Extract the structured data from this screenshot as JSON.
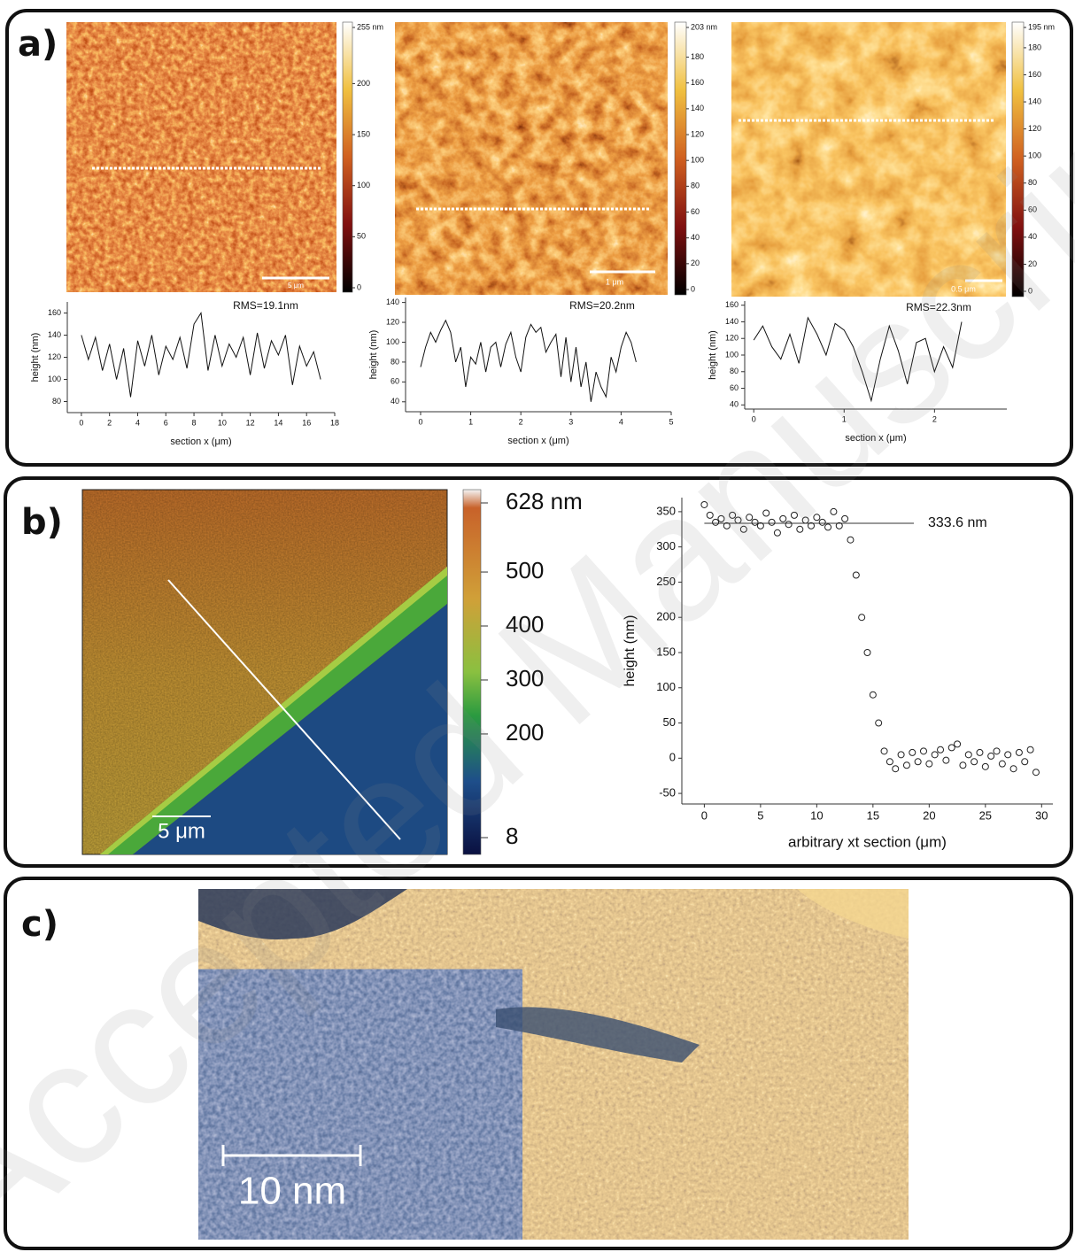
{
  "figure": {
    "watermark": "Accepted Manuscript",
    "panels": [
      {
        "label": "a)"
      },
      {
        "label": "b)"
      },
      {
        "label": "c)"
      }
    ],
    "images": [
      {
        "scale_bar": "5 μm",
        "colorbar": {
          "lim": [
            0,
            255
          ],
          "ticks": [
            {
              "value": 255,
              "label": "255 nm"
            },
            200,
            150,
            100,
            50,
            0
          ]
        }
      },
      {
        "scale_bar": "1 μm",
        "colorbar": {
          "lim": [
            0,
            203
          ],
          "ticks": [
            {
              "value": 203,
              "label": "203 nm"
            },
            180,
            160,
            140,
            120,
            100,
            80,
            60,
            40,
            20,
            0
          ]
        }
      },
      {
        "scale_bar": "0.5 μm",
        "colorbar": {
          "lim": [
            0,
            195
          ],
          "ticks": [
            {
              "value": 195,
              "label": "195 nm"
            },
            180,
            160,
            140,
            120,
            100,
            80,
            60,
            40,
            20,
            0
          ]
        }
      },
      {
        "scale_bar": "5 μm",
        "colorbar": {
          "lim": [
            8,
            628
          ],
          "ticks": [
            {
              "value": 628,
              "label": "628 nm"
            },
            500,
            400,
            300,
            200,
            8
          ]
        }
      },
      {
        "scale_bar": "10 nm"
      }
    ]
  },
  "chart_data": [
    {
      "type": "line",
      "annotation": "RMS=19.1nm",
      "xlabel": "section x (μm)",
      "ylabel": "height (nm)",
      "color": "#111111",
      "x": [
        0,
        0.5,
        1,
        1.5,
        2,
        2.5,
        3,
        3.5,
        4,
        4.5,
        5,
        5.5,
        6,
        6.5,
        7,
        7.5,
        8,
        8.5,
        9,
        9.5,
        10,
        10.5,
        11,
        11.5,
        12,
        12.5,
        13,
        13.5,
        14,
        14.5,
        15,
        15.5,
        16,
        16.5,
        17
      ],
      "values": [
        140,
        118,
        138,
        108,
        132,
        100,
        128,
        84,
        135,
        112,
        140,
        104,
        130,
        118,
        138,
        110,
        150,
        160,
        108,
        140,
        112,
        132,
        120,
        138,
        104,
        142,
        110,
        135,
        122,
        140,
        95,
        130,
        112,
        125,
        100
      ],
      "xlim": [
        -1,
        18
      ],
      "ylim": [
        70,
        170
      ],
      "xticks": [
        0,
        2,
        4,
        6,
        8,
        10,
        12,
        14,
        16,
        18
      ],
      "yticks": [
        80,
        100,
        120,
        140,
        160
      ]
    },
    {
      "type": "line",
      "annotation": "RMS=20.2nm",
      "xlabel": "section x (μm)",
      "ylabel": "height (nm)",
      "color": "#111111",
      "x": [
        0,
        0.1,
        0.2,
        0.3,
        0.4,
        0.5,
        0.6,
        0.7,
        0.8,
        0.9,
        1,
        1.1,
        1.2,
        1.3,
        1.4,
        1.5,
        1.6,
        1.7,
        1.8,
        1.9,
        2,
        2.1,
        2.2,
        2.3,
        2.4,
        2.5,
        2.6,
        2.7,
        2.8,
        2.9,
        3,
        3.1,
        3.2,
        3.3,
        3.4,
        3.5,
        3.6,
        3.7,
        3.8,
        3.9,
        4,
        4.1,
        4.2,
        4.3
      ],
      "values": [
        75,
        95,
        110,
        100,
        112,
        122,
        110,
        80,
        95,
        55,
        85,
        78,
        100,
        70,
        95,
        100,
        75,
        98,
        110,
        85,
        70,
        105,
        118,
        110,
        115,
        90,
        100,
        108,
        65,
        105,
        60,
        95,
        55,
        80,
        40,
        70,
        55,
        45,
        85,
        70,
        95,
        110,
        100,
        80
      ],
      "xlim": [
        -0.3,
        5
      ],
      "ylim": [
        30,
        145
      ],
      "xticks": [
        0,
        1,
        2,
        3,
        4,
        5
      ],
      "yticks": [
        40,
        60,
        80,
        100,
        120,
        140
      ]
    },
    {
      "type": "line",
      "annotation": "RMS=22.3nm",
      "xlabel": "section x (μm)",
      "ylabel": "height (nm)",
      "color": "#111111",
      "x": [
        0,
        0.1,
        0.2,
        0.3,
        0.4,
        0.5,
        0.6,
        0.7,
        0.8,
        0.9,
        1,
        1.1,
        1.2,
        1.3,
        1.4,
        1.5,
        1.6,
        1.7,
        1.8,
        1.9,
        2,
        2.1,
        2.2,
        2.3
      ],
      "values": [
        118,
        135,
        110,
        95,
        125,
        90,
        145,
        125,
        100,
        138,
        130,
        110,
        80,
        45,
        95,
        135,
        105,
        65,
        115,
        120,
        80,
        110,
        85,
        140
      ],
      "xlim": [
        -0.1,
        2.8
      ],
      "ylim": [
        35,
        165
      ],
      "xticks": [
        0,
        1,
        2
      ],
      "yticks": [
        40,
        60,
        80,
        100,
        120,
        140,
        160
      ]
    },
    {
      "type": "scatter",
      "xlabel": "arbitrary xt section (μm)",
      "ylabel": "height (nm)",
      "color": "#222222",
      "annotations": [
        {
          "text": "333.6 nm",
          "y": 333.6
        }
      ],
      "x": [
        0,
        0.5,
        1,
        1.5,
        2,
        2.5,
        3,
        3.5,
        4,
        4.5,
        5,
        5.5,
        6,
        6.5,
        7,
        7.5,
        8,
        8.5,
        9,
        9.5,
        10,
        10.5,
        11,
        11.5,
        12,
        12.5,
        13,
        13.5,
        14,
        14.5,
        15,
        15.5,
        16,
        16.5,
        17,
        17.5,
        18,
        18.5,
        19,
        19.5,
        20,
        20.5,
        21,
        21.5,
        22,
        22.5,
        23,
        23.5,
        24,
        24.5,
        25,
        25.5,
        26,
        26.5,
        27,
        27.5,
        28,
        28.5,
        29,
        29.5
      ],
      "values": [
        360,
        345,
        335,
        340,
        330,
        345,
        338,
        325,
        342,
        335,
        330,
        348,
        335,
        320,
        340,
        332,
        345,
        325,
        338,
        330,
        342,
        335,
        328,
        350,
        330,
        340,
        310,
        260,
        200,
        150,
        90,
        50,
        10,
        -5,
        -15,
        5,
        -10,
        8,
        -5,
        10,
        -8,
        5,
        12,
        -3,
        15,
        20,
        -10,
        5,
        -5,
        8,
        -12,
        3,
        10,
        -8,
        5,
        -15,
        8,
        -5,
        12,
        -20
      ],
      "xlim": [
        -2,
        31
      ],
      "ylim": [
        -65,
        370
      ],
      "xticks": [
        0,
        5,
        10,
        15,
        20,
        25,
        30
      ],
      "yticks": [
        -50,
        0,
        50,
        100,
        150,
        200,
        250,
        300,
        350
      ]
    }
  ]
}
